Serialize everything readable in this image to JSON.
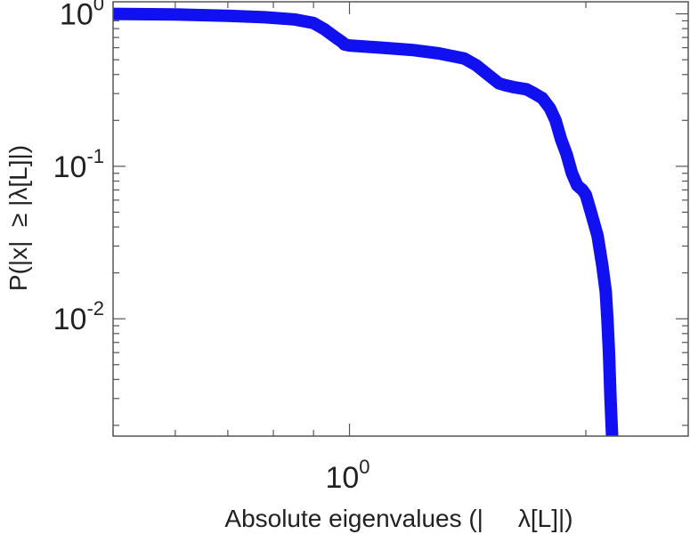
{
  "chart_data": {
    "type": "line",
    "xlabel": "Absolute eigenvalues (|     λ[L]|)",
    "ylabel": "P(|x|  ≥ |λ[L]|)",
    "x_scale": "log",
    "y_scale": "log",
    "xlim": [
      0.5,
      2.7
    ],
    "ylim": [
      0.0017,
      1.2
    ],
    "x_ticks": [
      {
        "base": "10",
        "exp": "0",
        "value": 1
      }
    ],
    "y_ticks": [
      {
        "base": "10",
        "exp": "0",
        "value": 1
      },
      {
        "base": "10",
        "exp": "-1",
        "value": 0.1
      },
      {
        "base": "10",
        "exp": "-2",
        "value": 0.01
      }
    ],
    "grid": false,
    "series": [
      {
        "color": "#1010f0",
        "x": [
          0.5,
          0.6,
          0.7,
          0.78,
          0.85,
          0.9,
          0.93,
          0.96,
          0.98,
          0.985,
          1.0,
          1.1,
          1.2,
          1.3,
          1.4,
          1.45,
          1.5,
          1.55,
          1.58,
          1.62,
          1.68,
          1.72,
          1.76,
          1.8,
          1.83,
          1.86,
          1.89,
          1.92,
          1.95,
          1.98,
          2.0,
          2.03,
          2.07,
          2.1,
          2.12,
          2.13,
          2.14,
          2.15,
          2.16
        ],
        "y": [
          1.0,
          0.99,
          0.97,
          0.95,
          0.92,
          0.87,
          0.79,
          0.7,
          0.65,
          0.63,
          0.62,
          0.6,
          0.58,
          0.55,
          0.51,
          0.46,
          0.4,
          0.35,
          0.34,
          0.33,
          0.32,
          0.3,
          0.28,
          0.24,
          0.2,
          0.15,
          0.12,
          0.09,
          0.075,
          0.07,
          0.065,
          0.05,
          0.035,
          0.022,
          0.015,
          0.01,
          0.006,
          0.003,
          0.0017
        ]
      }
    ]
  }
}
